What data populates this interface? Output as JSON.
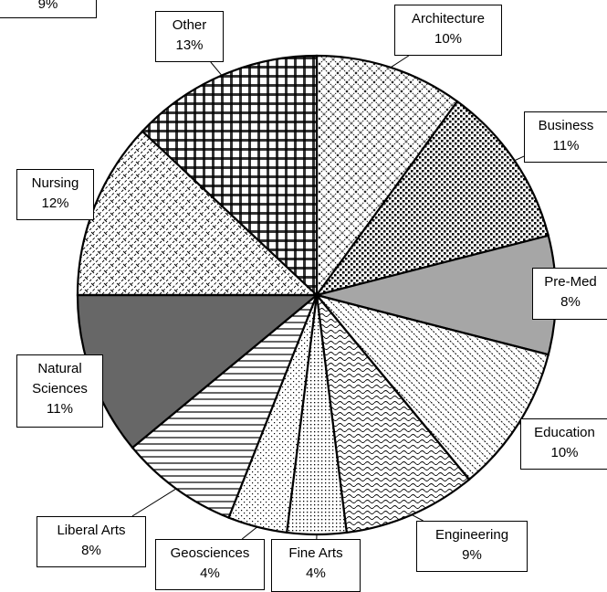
{
  "chart_data": {
    "type": "pie",
    "annotation": "9%",
    "categories": [
      "Architecture",
      "Business",
      "Pre-Med",
      "Education",
      "Engineering",
      "Fine Arts",
      "Geosciences",
      "Liberal Arts",
      "Natural Sciences",
      "Nursing",
      "Other"
    ],
    "values": [
      10,
      11,
      8,
      10,
      9,
      4,
      4,
      8,
      11,
      12,
      13
    ],
    "value_labels": [
      "10%",
      "11%",
      "8%",
      "10%",
      "9%",
      "4%",
      "4%",
      "8%",
      "11%",
      "12%",
      "13%"
    ],
    "colors": [
      "url(#p-arch)",
      "url(#p-bus)",
      "#a6a6a6",
      "url(#p-edu)",
      "url(#p-eng)",
      "url(#p-fine)",
      "url(#p-geo)",
      "url(#p-lib)",
      "#676767",
      "url(#p-nur)",
      "url(#p-oth)"
    ],
    "start_angle": 0,
    "direction": "clockwise"
  }
}
